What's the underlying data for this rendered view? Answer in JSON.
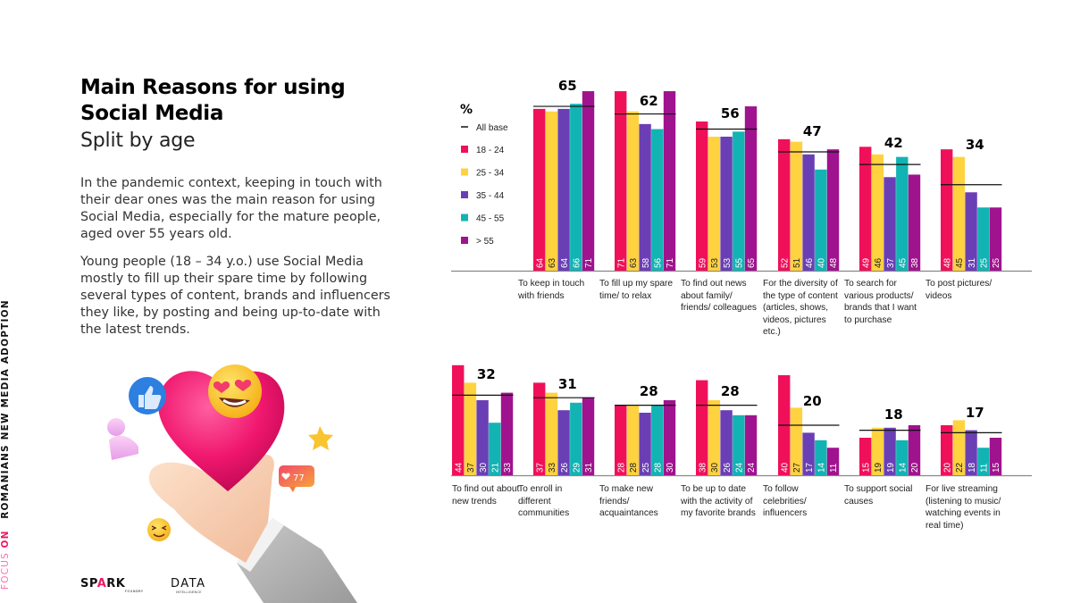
{
  "side_label": {
    "focus": "FOCUS",
    "on": "ON",
    "topic": "ROMANIANS NEW MEDIA ADOPTION"
  },
  "header": {
    "title": "Main Reasons for using Social Media",
    "subtitle": "Split by age"
  },
  "paragraphs": [
    "In the pandemic context, keeping in touch with their dear ones was the main reason for using Social Media, especially for the mature people, aged over 55 years old.",
    "Young people (18 – 34 y.o.) use Social Media mostly to fill up their spare time by following several types of content, brands and influencers they like, by posting and being up-to-date with the latest trends."
  ],
  "illustration": {
    "description": "hand-holding-heart-with-social-icons",
    "like_count": "77"
  },
  "logos": {
    "spark": {
      "text_pre": "SP",
      "text_a": "A",
      "text_post": "RK",
      "sub": "FOUNDRY"
    },
    "data": {
      "text": "DATA",
      "sub": "INTELLIGENCE"
    }
  },
  "colors": {
    "age_18_24": "#f0105a",
    "age_25_34": "#ffd23f",
    "age_35_44": "#6a3fb5",
    "age_45_55": "#12b3b3",
    "age_over_55": "#a0138e",
    "all_base": "#111111",
    "axis": "#888888"
  },
  "chart_data": {
    "type": "bar",
    "title": "Main Reasons for using Social Media - Split by age",
    "unit": "%",
    "ylabel": "%",
    "ylim": [
      0,
      75
    ],
    "grid": false,
    "legend_placement": "top-left",
    "legend": {
      "unit_label": "%",
      "all_base_label": "All base",
      "series_labels": [
        "18 - 24",
        "25 - 34",
        "35 - 44",
        "45 - 55",
        "> 55"
      ]
    },
    "series": [
      {
        "name": "18 - 24",
        "color": "#f0105a"
      },
      {
        "name": "25 - 34",
        "color": "#ffd23f"
      },
      {
        "name": "35 - 44",
        "color": "#6a3fb5"
      },
      {
        "name": "45 - 55",
        "color": "#12b3b3"
      },
      {
        "name": "> 55",
        "color": "#a0138e"
      }
    ],
    "panels": [
      {
        "name": "top",
        "groups": [
          {
            "category": "To keep in touch with friends",
            "all_base": 65,
            "values": [
              64,
              63,
              64,
              66,
              71
            ]
          },
          {
            "category": "To fill up my spare time/ to relax",
            "all_base": 62,
            "values": [
              71,
              63,
              58,
              56,
              71
            ]
          },
          {
            "category": "To find out news about family/ friends/ colleagues",
            "all_base": 56,
            "values": [
              59,
              53,
              53,
              55,
              65
            ]
          },
          {
            "category": "For the diversity of the type of content (articles, shows, videos, pictures etc.)",
            "all_base": 47,
            "values": [
              52,
              51,
              46,
              40,
              48
            ]
          },
          {
            "category": "To search for various products/ brands that I want to purchase",
            "all_base": 42,
            "values": [
              49,
              46,
              37,
              45,
              38
            ]
          },
          {
            "category": "To post pictures/ videos",
            "all_base": 34,
            "values": [
              48,
              45,
              31,
              25,
              25
            ]
          }
        ]
      },
      {
        "name": "bottom",
        "groups": [
          {
            "category": "To find out about new trends",
            "all_base": 32,
            "values": [
              44,
              37,
              30,
              21,
              33
            ]
          },
          {
            "category": "To enroll in different communities",
            "all_base": 31,
            "values": [
              37,
              33,
              26,
              29,
              31
            ]
          },
          {
            "category": "To make new friends/ acquaintances",
            "all_base": 28,
            "values": [
              28,
              28,
              25,
              28,
              30
            ]
          },
          {
            "category": "To be up to date with the activity of my favorite brands",
            "all_base": 28,
            "values": [
              38,
              30,
              26,
              24,
              24
            ]
          },
          {
            "category": "To follow celebrities/ influencers",
            "all_base": 20,
            "values": [
              40,
              27,
              17,
              14,
              11
            ]
          },
          {
            "category": "To support social causes",
            "all_base": 18,
            "values": [
              15,
              19,
              19,
              14,
              20
            ]
          },
          {
            "category": "For live streaming (listening to music/ watching events in real time)",
            "all_base": 17,
            "values": [
              20,
              22,
              18,
              11,
              15
            ]
          }
        ]
      }
    ]
  }
}
